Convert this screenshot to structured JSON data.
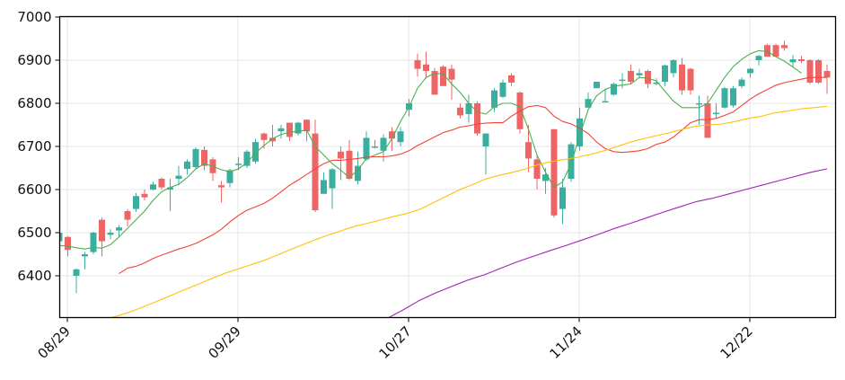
{
  "chart_data": {
    "type": "candlestick",
    "title": "",
    "xlabel": "",
    "ylabel": "",
    "ylim": [
      6304,
      7000
    ],
    "grid": true,
    "legend": null,
    "y_ticks": [
      6400,
      6500,
      6600,
      6700,
      6800,
      6900,
      7000
    ],
    "x_ticks": [
      {
        "label": "08/29",
        "index": 1
      },
      {
        "label": "09/29",
        "index": 21
      },
      {
        "label": "10/27",
        "index": 41
      },
      {
        "label": "11/24",
        "index": 61
      },
      {
        "label": "12/22",
        "index": 81
      }
    ],
    "colors": {
      "up": "#3aafa0",
      "down": "#ee6566",
      "ma_short": "#4caf50",
      "ma_mid": "#f44336",
      "ma_long": "#ffc107",
      "ma_longest": "#9c27b0",
      "grid": "#e6e6e6",
      "axis": "#000000"
    },
    "candles": [
      [
        6480,
        6500,
        6475,
        6502
      ],
      [
        6490,
        6460,
        6445,
        6492
      ],
      [
        6400,
        6415,
        6360,
        6417
      ],
      [
        6445,
        6450,
        6415,
        6455
      ],
      [
        6455,
        6500,
        6450,
        6502
      ],
      [
        6530,
        6480,
        6445,
        6535
      ],
      [
        6495,
        6500,
        6485,
        6508
      ],
      [
        6505,
        6512,
        6490,
        6518
      ],
      [
        6550,
        6530,
        6515,
        6555
      ],
      [
        6555,
        6585,
        6548,
        6592
      ],
      [
        6590,
        6582,
        6575,
        6600
      ],
      [
        6600,
        6612,
        6598,
        6618
      ],
      [
        6625,
        6605,
        6600,
        6628
      ],
      [
        6600,
        6605,
        6550,
        6625
      ],
      [
        6625,
        6632,
        6610,
        6655
      ],
      [
        6648,
        6665,
        6635,
        6670
      ],
      [
        6652,
        6694,
        6648,
        6698
      ],
      [
        6692,
        6655,
        6645,
        6700
      ],
      [
        6670,
        6638,
        6620,
        6675
      ],
      [
        6610,
        6605,
        6570,
        6620
      ],
      [
        6615,
        6645,
        6605,
        6648
      ],
      [
        6660,
        6660,
        6645,
        6675
      ],
      [
        6655,
        6688,
        6650,
        6692
      ],
      [
        6665,
        6710,
        6660,
        6718
      ],
      [
        6730,
        6715,
        6695,
        6732
      ],
      [
        6720,
        6712,
        6700,
        6750
      ],
      [
        6735,
        6742,
        6718,
        6750
      ],
      [
        6755,
        6722,
        6712,
        6755
      ],
      [
        6730,
        6755,
        6725,
        6757
      ],
      [
        6762,
        6735,
        6712,
        6762
      ],
      [
        6730,
        6552,
        6548,
        6762
      ],
      [
        6590,
        6622,
        6590,
        6640
      ],
      [
        6603,
        6647,
        6555,
        6650
      ],
      [
        6688,
        6672,
        6622,
        6700
      ],
      [
        6690,
        6625,
        6622,
        6715
      ],
      [
        6620,
        6655,
        6612,
        6688
      ],
      [
        6670,
        6720,
        6666,
        6735
      ],
      [
        6700,
        6700,
        6695,
        6715
      ],
      [
        6690,
        6720,
        6665,
        6728
      ],
      [
        6735,
        6718,
        6690,
        6745
      ],
      [
        6710,
        6735,
        6700,
        6745
      ],
      [
        6785,
        6800,
        6770,
        6810
      ],
      [
        6900,
        6880,
        6862,
        6915
      ],
      [
        6890,
        6875,
        6857,
        6920
      ],
      [
        6875,
        6820,
        6820,
        6882
      ],
      [
        6885,
        6840,
        6840,
        6888
      ],
      [
        6880,
        6855,
        6808,
        6890
      ],
      [
        6790,
        6772,
        6765,
        6800
      ],
      [
        6775,
        6800,
        6755,
        6820
      ],
      [
        6800,
        6730,
        6725,
        6805
      ],
      [
        6700,
        6730,
        6635,
        6730
      ],
      [
        6790,
        6830,
        6780,
        6835
      ],
      [
        6815,
        6848,
        6812,
        6855
      ],
      [
        6865,
        6848,
        6840,
        6870
      ],
      [
        6825,
        6740,
        6730,
        6828
      ],
      [
        6710,
        6672,
        6640,
        6750
      ],
      [
        6670,
        6625,
        6600,
        6680
      ],
      [
        6620,
        6635,
        6590,
        6650
      ],
      [
        6740,
        6540,
        6535,
        6740
      ],
      [
        6555,
        6605,
        6520,
        6625
      ],
      [
        6625,
        6705,
        6618,
        6710
      ],
      [
        6700,
        6765,
        6690,
        6790
      ],
      [
        6790,
        6810,
        6790,
        6825
      ],
      [
        6835,
        6850,
        6835,
        6848
      ],
      [
        6805,
        6805,
        6805,
        6835
      ],
      [
        6820,
        6845,
        6818,
        6848
      ],
      [
        6855,
        6855,
        6835,
        6870
      ],
      [
        6875,
        6850,
        6845,
        6890
      ],
      [
        6865,
        6870,
        6858,
        6880
      ],
      [
        6875,
        6845,
        6835,
        6878
      ],
      [
        6848,
        6848,
        6842,
        6858
      ],
      [
        6850,
        6888,
        6840,
        6890
      ],
      [
        6870,
        6900,
        6860,
        6902
      ],
      [
        6890,
        6830,
        6820,
        6905
      ],
      [
        6880,
        6830,
        6820,
        6882
      ],
      [
        6800,
        6800,
        6750,
        6818
      ],
      [
        6800,
        6720,
        6720,
        6818
      ],
      [
        6778,
        6778,
        6765,
        6800
      ],
      [
        6790,
        6835,
        6788,
        6838
      ],
      [
        6795,
        6835,
        6790,
        6840
      ],
      [
        6840,
        6855,
        6835,
        6860
      ],
      [
        6870,
        6880,
        6860,
        6882
      ],
      [
        6900,
        6910,
        6888,
        6912
      ],
      [
        6935,
        6908,
        6908,
        6938
      ],
      [
        6935,
        6908,
        6908,
        6938
      ],
      [
        6935,
        6928,
        6922,
        6945
      ],
      [
        6895,
        6902,
        6885,
        6912
      ],
      [
        6902,
        6898,
        6893,
        6910
      ],
      [
        6900,
        6848,
        6845,
        6902
      ],
      [
        6900,
        6848,
        6845,
        6902
      ],
      [
        6875,
        6860,
        6822,
        6890
      ]
    ],
    "ma_short": [
      6470,
      6469,
      6465,
      6462,
      6466,
      6464,
      6472,
      6490,
      6510,
      6530,
      6550,
      6575,
      6595,
      6605,
      6612,
      6628,
      6648,
      6660,
      6654,
      6646,
      6641,
      6648,
      6662,
      6685,
      6702,
      6718,
      6728,
      6733,
      6735,
      6738,
      6700,
      6680,
      6660,
      6645,
      6628,
      6645,
      6672,
      6680,
      6688,
      6718,
      6758,
      6792,
      6835,
      6860,
      6870,
      6868,
      6845,
      6825,
      6800,
      6780,
      6775,
      6792,
      6800,
      6800,
      6792,
      6740,
      6680,
      6640,
      6605,
      6618,
      6660,
      6725,
      6785,
      6818,
      6832,
      6840,
      6842,
      6845,
      6860,
      6858,
      6852,
      6828,
      6805,
      6790,
      6790,
      6790,
      6800,
      6830,
      6860,
      6885,
      6902,
      6915,
      6922,
      6920,
      6908,
      6898,
      6884,
      6870
    ],
    "ma_mid": [
      6405,
      6418,
      6422,
      6430,
      6440,
      6448,
      6455,
      6462,
      6468,
      6475,
      6485,
      6495,
      6508,
      6525,
      6540,
      6552,
      6560,
      6568,
      6580,
      6595,
      6610,
      6622,
      6635,
      6648,
      6660,
      6668,
      6668,
      6670,
      6672,
      6675,
      6676,
      6676,
      6678,
      6682,
      6690,
      6702,
      6712,
      6722,
      6732,
      6738,
      6745,
      6748,
      6752,
      6754,
      6755,
      6755,
      6770,
      6782,
      6792,
      6795,
      6790,
      6770,
      6758,
      6752,
      6742,
      6730,
      6710,
      6695,
      6688,
      6686,
      6688,
      6690,
      6695,
      6705,
      6710,
      6722,
      6738,
      6755,
      6762,
      6762,
      6765,
      6772,
      6780,
      6795,
      6810,
      6822,
      6832,
      6842,
      6848,
      6852,
      6856,
      6860,
      6860,
      6860
    ],
    "ma_long": [
      6300,
      6308,
      6318,
      6330,
      6342,
      6355,
      6368,
      6380,
      6393,
      6405,
      6415,
      6425,
      6435,
      6447,
      6460,
      6472,
      6484,
      6495,
      6505,
      6515,
      6522,
      6530,
      6538,
      6545,
      6555,
      6570,
      6585,
      6600,
      6612,
      6625,
      6633,
      6640,
      6648,
      6658,
      6665,
      6670,
      6675,
      6682,
      6690,
      6700,
      6710,
      6718,
      6725,
      6732,
      6740,
      6747,
      6750,
      6752,
      6758,
      6765,
      6770,
      6778,
      6782,
      6787,
      6790,
      6793
    ],
    "ma_longest": [
      6300,
      6320,
      6342,
      6360,
      6375,
      6390,
      6402,
      6417,
      6432,
      6445,
      6458,
      6470,
      6483,
      6496,
      6510,
      6522,
      6535,
      6548,
      6560,
      6572,
      6580,
      6590,
      6600,
      6610,
      6620,
      6630,
      6640,
      6648
    ]
  }
}
